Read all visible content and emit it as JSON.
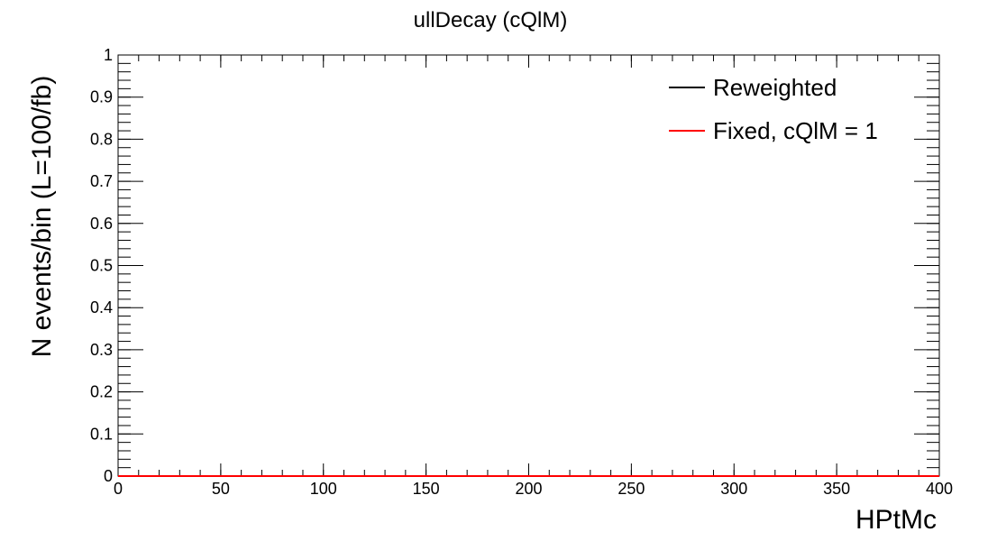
{
  "chart_data": {
    "type": "line",
    "title": "ullDecay (cQlM)",
    "xlabel": "HPtMc",
    "ylabel": "N events/bin (L=100/fb)",
    "xlim": [
      0,
      400
    ],
    "ylim": [
      0,
      1
    ],
    "x_ticks": [
      "0",
      "50",
      "100",
      "150",
      "200",
      "250",
      "300",
      "350",
      "400"
    ],
    "y_ticks": [
      "0",
      "0.1",
      "0.2",
      "0.3",
      "0.4",
      "0.5",
      "0.6",
      "0.7",
      "0.8",
      "0.9",
      "1"
    ],
    "grid": false,
    "legend_position": "top-right",
    "series": [
      {
        "name": "Reweighted",
        "color": "#000000",
        "x": [
          0,
          400
        ],
        "y": [
          0,
          0
        ]
      },
      {
        "name": "Fixed, cQlM = 1",
        "color": "#ff0000",
        "x": [
          0,
          400
        ],
        "y": [
          0,
          0
        ]
      }
    ]
  }
}
